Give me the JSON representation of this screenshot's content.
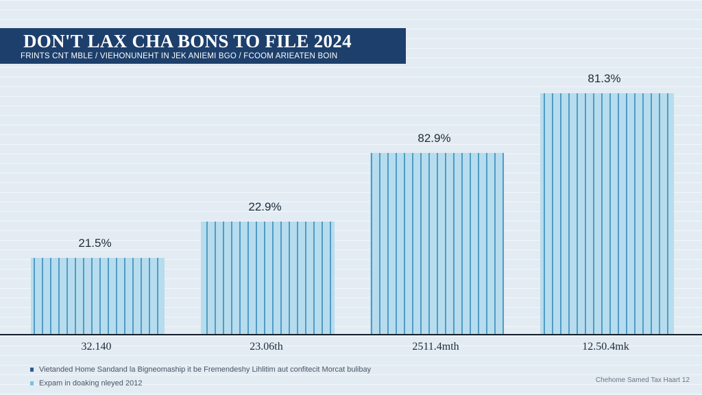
{
  "header": {
    "title": "DON'T LAX CHA BONS TO FILE 2024",
    "subtitle": "FRINTS CNT MBLE / VIEHONUNEHT IN JEK ANIEMI BGO / FCOOM ARIEATEN BOIN"
  },
  "colors": {
    "bar_fill": "#b7dcee",
    "bar_stripe": "#4f9cc4",
    "banner": "#1d3f6b",
    "legend_dark": "#2c5f8a",
    "legend_light": "#7fc0e0"
  },
  "chart_data": {
    "type": "bar",
    "categories": [
      "32.140",
      "23.06th",
      "2511.4mth",
      "12.50.4mk"
    ],
    "values": [
      21.5,
      22.9,
      82.9,
      81.3
    ],
    "data_labels": [
      "21.5%",
      "22.9%",
      "82.9%",
      "81.3%"
    ],
    "title": "DON'T LAX CHA BONS TO FILE 2024",
    "ylim": [
      0,
      100
    ],
    "grid": false,
    "legend_position": "bottom-left"
  },
  "legend": {
    "items": [
      {
        "label": "Vietanded Home Sandand la Bigneomaship it be Fremendeshy Lihlitim aut confitecit Morcat bulibay",
        "color": "#2c5f8a"
      },
      {
        "label": "Expam in doaking nleyed 2012",
        "color": "#7fc0e0"
      }
    ]
  },
  "source_note": "Chehome Samed Tax Haart 12"
}
